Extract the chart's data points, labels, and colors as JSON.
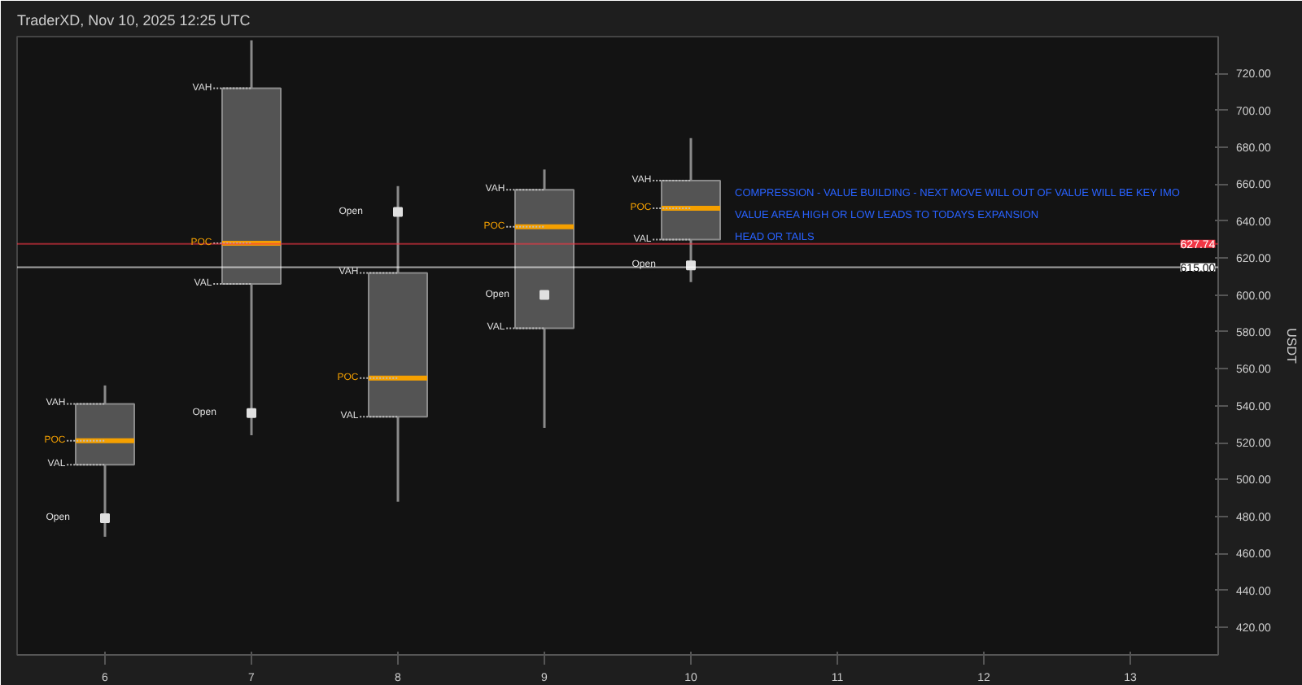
{
  "chart_data": {
    "type": "box",
    "title": "TraderXD, Nov 10, 2025 12:25 UTC",
    "ylabel": "USDT",
    "categories": [
      "6",
      "7",
      "8",
      "9",
      "10",
      "11",
      "12",
      "13"
    ],
    "boxes": [
      {
        "low": 469,
        "q1": 508,
        "median": 521,
        "q3": 541,
        "high": 551
      },
      {
        "low": 524,
        "q1": 606,
        "median": 628,
        "q3": 712,
        "high": 738
      },
      {
        "low": 488,
        "q1": 534,
        "median": 555,
        "q3": 612,
        "high": 659
      },
      {
        "low": 528,
        "q1": 582,
        "median": 637,
        "q3": 657,
        "high": 668
      },
      {
        "low": 607,
        "q1": 630,
        "median": 647,
        "q3": 662,
        "high": 685
      },
      null,
      null,
      null
    ],
    "color": "#8a8a8a",
    "series": [
      {
        "type": "scatter",
        "name": "Open",
        "color": "#e0e0e0",
        "x": [
          "6",
          "7",
          "8",
          "9",
          "10"
        ],
        "values": [
          479,
          536,
          645,
          600,
          616
        ]
      }
    ],
    "marker": "square",
    "annotations": [
      {
        "text": "VAH",
        "x": "6",
        "y": 541
      },
      {
        "text": "POC",
        "x": "6",
        "y": 521
      },
      {
        "text": "VAL",
        "x": "6",
        "y": 508
      },
      {
        "text": "VAH",
        "x": "7",
        "y": 712
      },
      {
        "text": "POC",
        "x": "7",
        "y": 628
      },
      {
        "text": "VAL",
        "x": "7",
        "y": 606
      },
      {
        "text": "VAH",
        "x": "8",
        "y": 612
      },
      {
        "text": "POC",
        "x": "8",
        "y": 555
      },
      {
        "text": "VAL",
        "x": "8",
        "y": 534
      },
      {
        "text": "VAH",
        "x": "9",
        "y": 657
      },
      {
        "text": "POC",
        "x": "9",
        "y": 637
      },
      {
        "text": "VAL",
        "x": "9",
        "y": 582
      },
      {
        "text": "VAH",
        "x": "10",
        "y": 662
      },
      {
        "text": "POC",
        "x": "10",
        "y": 647
      },
      {
        "text": "VAL",
        "x": "10",
        "y": 630
      },
      "COMPRESSION - VALUE BUILDING - NEXT MOVE WILL OUT OF VALUE WILL BE KEY IMO",
      "VALUE AREA HIGH  OR LOW LEADS TO TODAYS EXPANSION",
      "HEAD OR TAILS"
    ],
    "ref_lines": [
      {
        "axis": "y",
        "value": 627.74,
        "label": "627.74",
        "color": "#f23645"
      },
      {
        "axis": "y",
        "value": 615,
        "label": "615.00",
        "color": "#ffffff"
      }
    ],
    "ylim": [
      405,
      740
    ],
    "yticks": [
      {
        "value": 420,
        "label": "420.00"
      },
      {
        "value": 440,
        "label": "440.00"
      },
      {
        "value": 460,
        "label": "460.00"
      },
      {
        "value": 480,
        "label": "480.00"
      },
      {
        "value": 500,
        "label": "500.00"
      },
      {
        "value": 520,
        "label": "520.00"
      },
      {
        "value": 540,
        "label": "540.00"
      },
      {
        "value": 560,
        "label": "560.00"
      },
      {
        "value": 580,
        "label": "580.00"
      },
      {
        "value": 600,
        "label": "600.00"
      },
      {
        "value": 620,
        "label": "620.00"
      },
      {
        "value": 640,
        "label": "640.00"
      },
      {
        "value": 660,
        "label": "660.00"
      },
      {
        "value": 680,
        "label": "680.00"
      },
      {
        "value": 700,
        "label": "700.00"
      },
      {
        "value": 720,
        "label": "720.00"
      }
    ],
    "grid": false,
    "legend": false
  }
}
